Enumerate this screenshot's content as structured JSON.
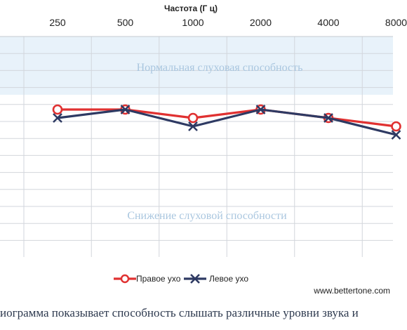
{
  "chart_data": {
    "type": "line",
    "xlabel": "Частота (Г ц)",
    "categories": [
      "250",
      "500",
      "1000",
      "2000",
      "4000",
      "8000"
    ],
    "ylim": [
      120,
      0
    ],
    "grid": true,
    "bands": {
      "normal": "Нормальная слуховая способность",
      "loss": "Снижение слуховой способности"
    },
    "series": [
      {
        "name": "Правое ухо",
        "values": [
          60,
          60,
          65,
          60,
          65,
          70
        ],
        "color": "#e03131",
        "marker": "circle"
      },
      {
        "name": "Левое ухо",
        "values": [
          65,
          60,
          70,
          60,
          65,
          75
        ],
        "color": "#2e3a63",
        "marker": "x"
      }
    ],
    "legend_position": "bottom"
  },
  "website": "www.bettertone.com",
  "caption": "иограмма показывает способность слышать различные уровни звука и"
}
